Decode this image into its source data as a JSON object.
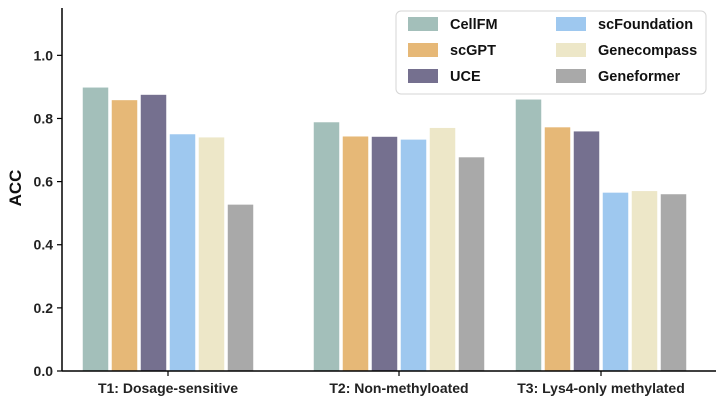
{
  "chart_data": {
    "type": "bar",
    "title": "",
    "xlabel": "",
    "ylabel": "ACC",
    "ylim": [
      0,
      1.15
    ],
    "yticks": [
      "0.0",
      "0.2",
      "0.4",
      "0.6",
      "0.8",
      "1.0"
    ],
    "grid": false,
    "legend_position": "top-right",
    "categories": [
      "T1: Dosage-sensitive",
      "T2: Non-methyloated",
      "T3: Lys4-only methylated"
    ],
    "series": [
      {
        "name": "CellFM",
        "color": "#a3bfba",
        "values": [
          0.898,
          0.788,
          0.86
        ]
      },
      {
        "name": "scGPT",
        "color": "#e6b877",
        "values": [
          0.858,
          0.743,
          0.772
        ]
      },
      {
        "name": "UCE",
        "color": "#75708f",
        "values": [
          0.875,
          0.742,
          0.759
        ]
      },
      {
        "name": "scFoundation",
        "color": "#9ec8ef",
        "values": [
          0.75,
          0.733,
          0.565
        ]
      },
      {
        "name": "Genecompass",
        "color": "#ede7c8",
        "values": [
          0.74,
          0.77,
          0.57
        ]
      },
      {
        "name": "Geneformer",
        "color": "#a9a9a9",
        "values": [
          0.527,
          0.677,
          0.56
        ]
      }
    ]
  }
}
